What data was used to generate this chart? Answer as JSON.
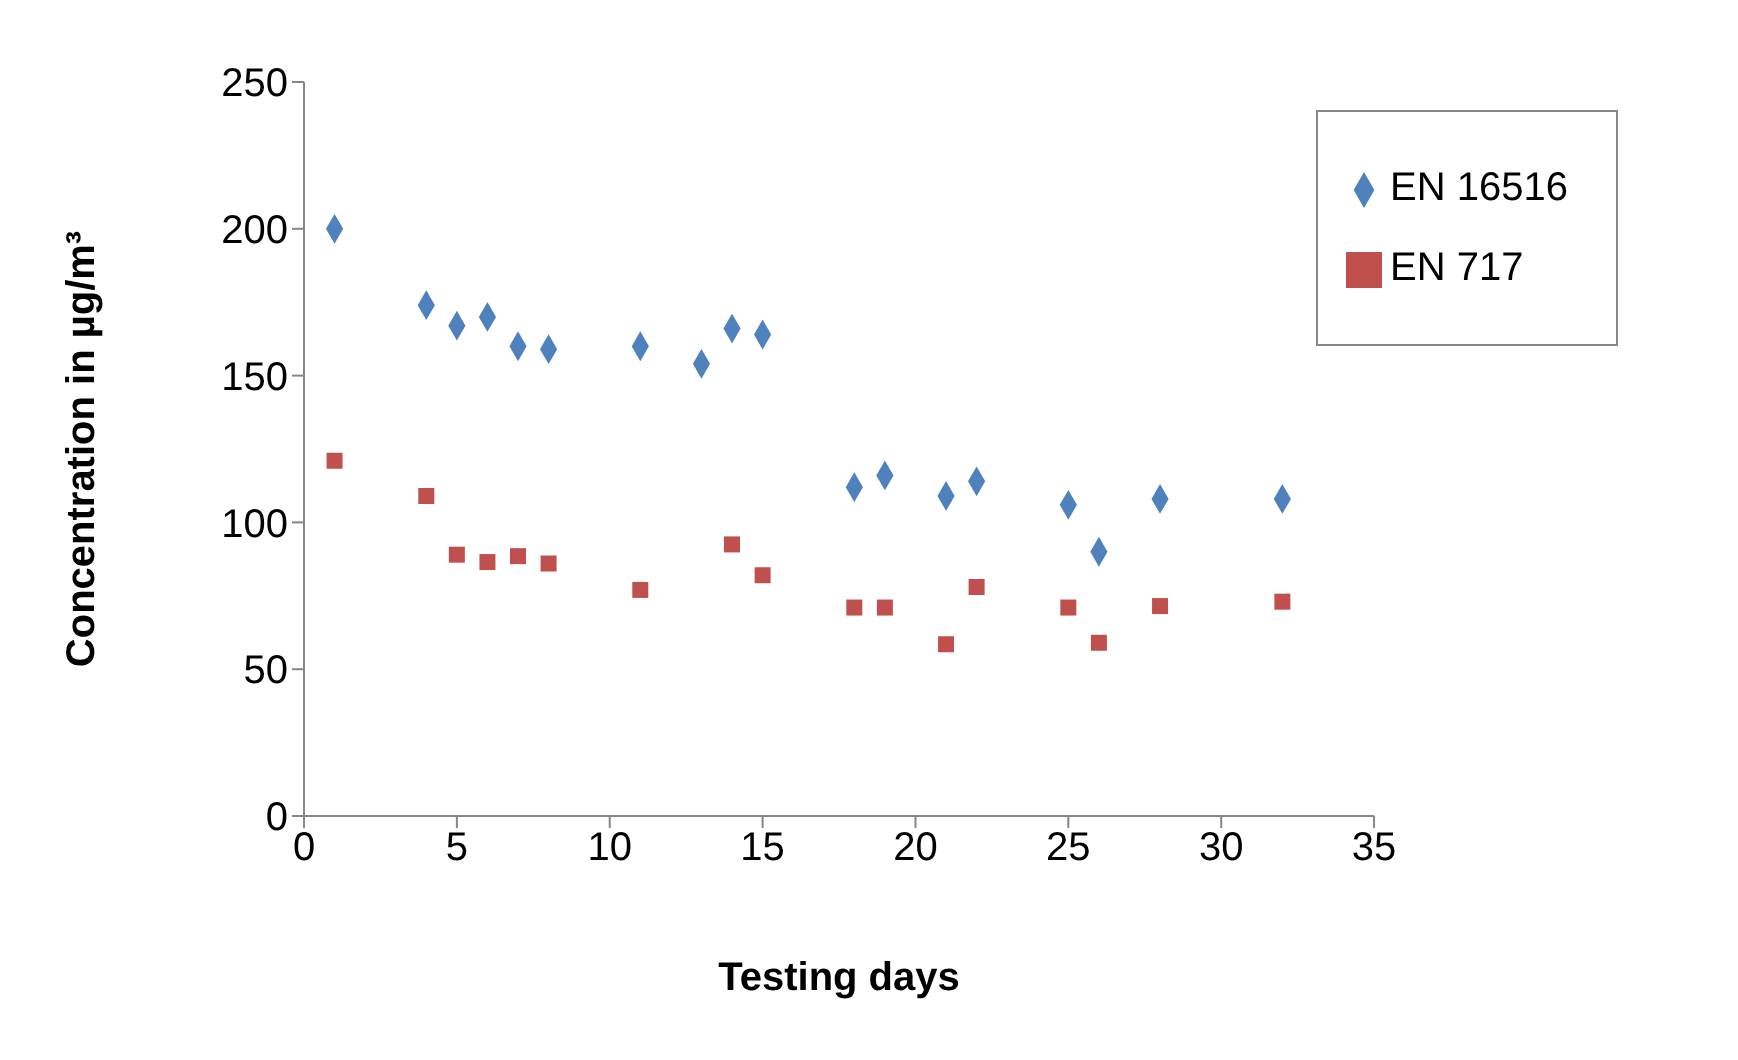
{
  "chart_data": {
    "type": "scatter",
    "xlabel": "Testing days",
    "ylabel": "Concentration in µg/m³",
    "xlim": [
      0,
      35
    ],
    "xticks": [
      0,
      5,
      10,
      15,
      20,
      25,
      30,
      35
    ],
    "ylim": [
      0,
      250
    ],
    "yticks": [
      0,
      50,
      100,
      150,
      200,
      250
    ],
    "legend": "top right",
    "x": [
      1,
      4,
      5,
      6,
      7,
      8,
      11,
      13,
      14,
      15,
      18,
      19,
      21,
      22,
      25,
      26,
      28,
      32
    ],
    "series": [
      {
        "name": "EN 16516",
        "color": "#4f81bd",
        "marker": "diamond",
        "values": [
          200,
          174,
          167,
          170,
          160,
          159,
          160,
          154,
          166,
          164,
          112,
          116,
          109,
          114,
          106,
          90,
          108,
          108
        ]
      },
      {
        "name": "EN 717",
        "color": "#c0504d",
        "marker": "square",
        "x": [
          1,
          4,
          5,
          6,
          7,
          8,
          11,
          14,
          15,
          18,
          19,
          21,
          22,
          25,
          26,
          28,
          32
        ],
        "values": [
          121,
          109,
          89,
          86.5,
          88.5,
          86,
          77,
          92.5,
          82,
          71,
          71,
          58.5,
          78,
          71,
          59,
          71.5,
          73
        ]
      }
    ]
  }
}
